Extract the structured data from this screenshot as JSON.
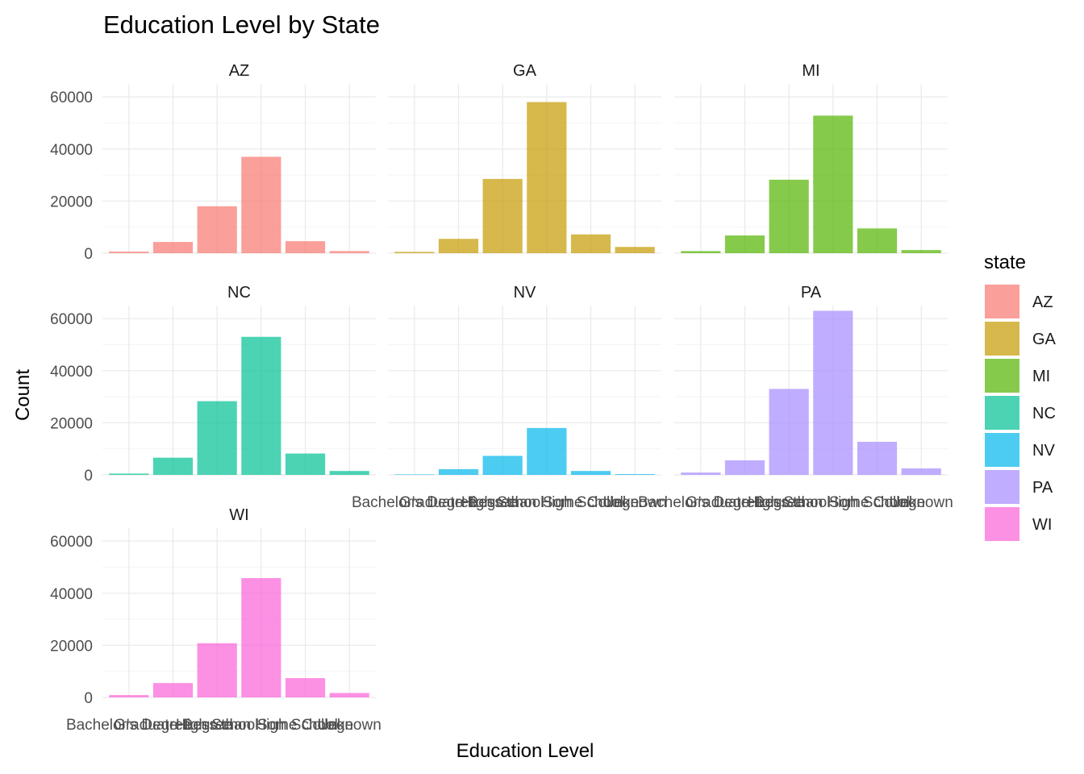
{
  "chart_data": {
    "type": "bar",
    "title": "Education Level by State",
    "xlabel": "Education Level",
    "ylabel": "Count",
    "ylim": [
      0,
      65000
    ],
    "y_ticks": [
      0,
      20000,
      40000,
      60000
    ],
    "grid": true,
    "legend": {
      "title": "state",
      "position": "right"
    },
    "categories": [
      "Bachelor's Degree",
      "Graduate Degree",
      "High School",
      "Less than High School",
      "Some College",
      "Unknown"
    ],
    "panels": [
      {
        "name": "AZ",
        "color": "#F8766D",
        "values": [
          600,
          4300,
          18000,
          37000,
          4600,
          800
        ]
      },
      {
        "name": "GA",
        "color": "#C49A00",
        "values": [
          500,
          5500,
          28500,
          58000,
          7200,
          2400
        ]
      },
      {
        "name": "MI",
        "color": "#53B400",
        "values": [
          800,
          6800,
          28200,
          52800,
          9500,
          1200
        ]
      },
      {
        "name": "NC",
        "color": "#00C094",
        "values": [
          500,
          6600,
          28300,
          53000,
          8200,
          1500
        ]
      },
      {
        "name": "NV",
        "color": "#00B6EB",
        "values": [
          100,
          2200,
          7300,
          18000,
          1500,
          300
        ]
      },
      {
        "name": "PA",
        "color": "#A58AFF",
        "values": [
          900,
          5600,
          33000,
          63000,
          12700,
          2500
        ]
      },
      {
        "name": "WI",
        "color": "#FB61D7",
        "values": [
          900,
          5500,
          20800,
          45800,
          7400,
          1700
        ]
      }
    ]
  }
}
